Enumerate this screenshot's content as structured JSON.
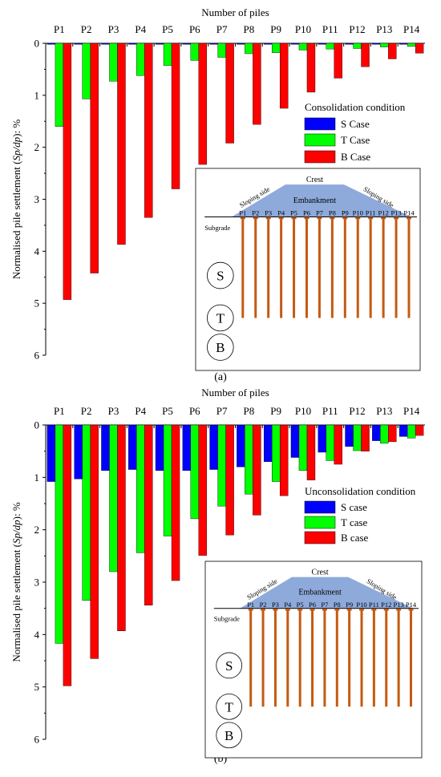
{
  "chart_data": [
    {
      "type": "bar",
      "panel_label": "(a)",
      "xlabel": "Number of piles",
      "ylabel": "Normalised pile settlement (Sp/dp): %",
      "ylabel_parts": [
        "Normalised pile settlement (",
        "Sp/dp",
        "): %"
      ],
      "ylim": [
        0,
        6
      ],
      "yticks": [
        "0",
        "1",
        "2",
        "3",
        "4",
        "5",
        "6"
      ],
      "y_inverted": true,
      "x_axis_position": "top",
      "categories": [
        "P1",
        "P2",
        "P3",
        "P4",
        "P5",
        "P6",
        "P7",
        "P8",
        "P9",
        "P10",
        "P11",
        "P12",
        "P13",
        "P14"
      ],
      "legend_title": "Consolidation condition",
      "legend_position": "right",
      "series": [
        {
          "name": "S Case",
          "color": "#0000ff",
          "values": [
            0.02,
            0.02,
            0.02,
            0.02,
            0.02,
            0.02,
            0.02,
            0.02,
            0.02,
            0.02,
            0.02,
            0.02,
            0.02,
            0.02
          ]
        },
        {
          "name": "T Case",
          "color": "#00ff00",
          "values": [
            1.6,
            1.07,
            0.73,
            0.62,
            0.43,
            0.33,
            0.27,
            0.2,
            0.18,
            0.13,
            0.11,
            0.1,
            0.07,
            0.06
          ]
        },
        {
          "name": "B Case",
          "color": "#ff0000",
          "values": [
            4.93,
            4.42,
            3.87,
            3.35,
            2.8,
            2.33,
            1.92,
            1.56,
            1.25,
            0.94,
            0.67,
            0.45,
            0.3,
            0.19
          ]
        }
      ]
    },
    {
      "type": "bar",
      "panel_label": "(b)",
      "xlabel": "Number of piles",
      "ylabel": "Normalised pile settlement (Sp/dp): %",
      "ylabel_parts": [
        "Normalised pile settlement (",
        "Sp/dp",
        "): %"
      ],
      "ylim": [
        0,
        6
      ],
      "yticks": [
        "0",
        "1",
        "2",
        "3",
        "4",
        "5",
        "6"
      ],
      "y_inverted": true,
      "x_axis_position": "top",
      "categories": [
        "P1",
        "P2",
        "P3",
        "P4",
        "P5",
        "P6",
        "P7",
        "P8",
        "P9",
        "P10",
        "P11",
        "P12",
        "P13",
        "P14"
      ],
      "legend_title": "Unconsolidation condition",
      "legend_position": "right",
      "series": [
        {
          "name": "S case",
          "color": "#0000ff",
          "values": [
            1.08,
            1.03,
            0.87,
            0.85,
            0.87,
            0.87,
            0.85,
            0.8,
            0.7,
            0.62,
            0.52,
            0.41,
            0.3,
            0.22
          ]
        },
        {
          "name": "T case",
          "color": "#00ff00",
          "values": [
            4.17,
            3.35,
            2.8,
            2.44,
            2.12,
            1.79,
            1.55,
            1.32,
            1.08,
            0.87,
            0.68,
            0.49,
            0.35,
            0.25
          ]
        },
        {
          "name": "B case",
          "color": "#ff0000",
          "values": [
            4.98,
            4.46,
            3.93,
            3.44,
            2.97,
            2.49,
            2.1,
            1.72,
            1.35,
            1.05,
            0.75,
            0.5,
            0.32,
            0.2
          ]
        }
      ]
    }
  ],
  "inset": {
    "crest": "Crest",
    "embankment": "Embankment",
    "sloping_left": "Sloping side",
    "sloping_right": "Sloping side",
    "subgrade": "Subgrade",
    "pile_labels": [
      "P1",
      "P2",
      "P3",
      "P4",
      "P5",
      "P6",
      "P7",
      "P8",
      "P9",
      "P10",
      "P11",
      "P12",
      "P13",
      "P14"
    ],
    "cases": [
      "S",
      "T",
      "B"
    ],
    "embankment_color": "#8eaadb",
    "pile_color": "#c55a11"
  }
}
